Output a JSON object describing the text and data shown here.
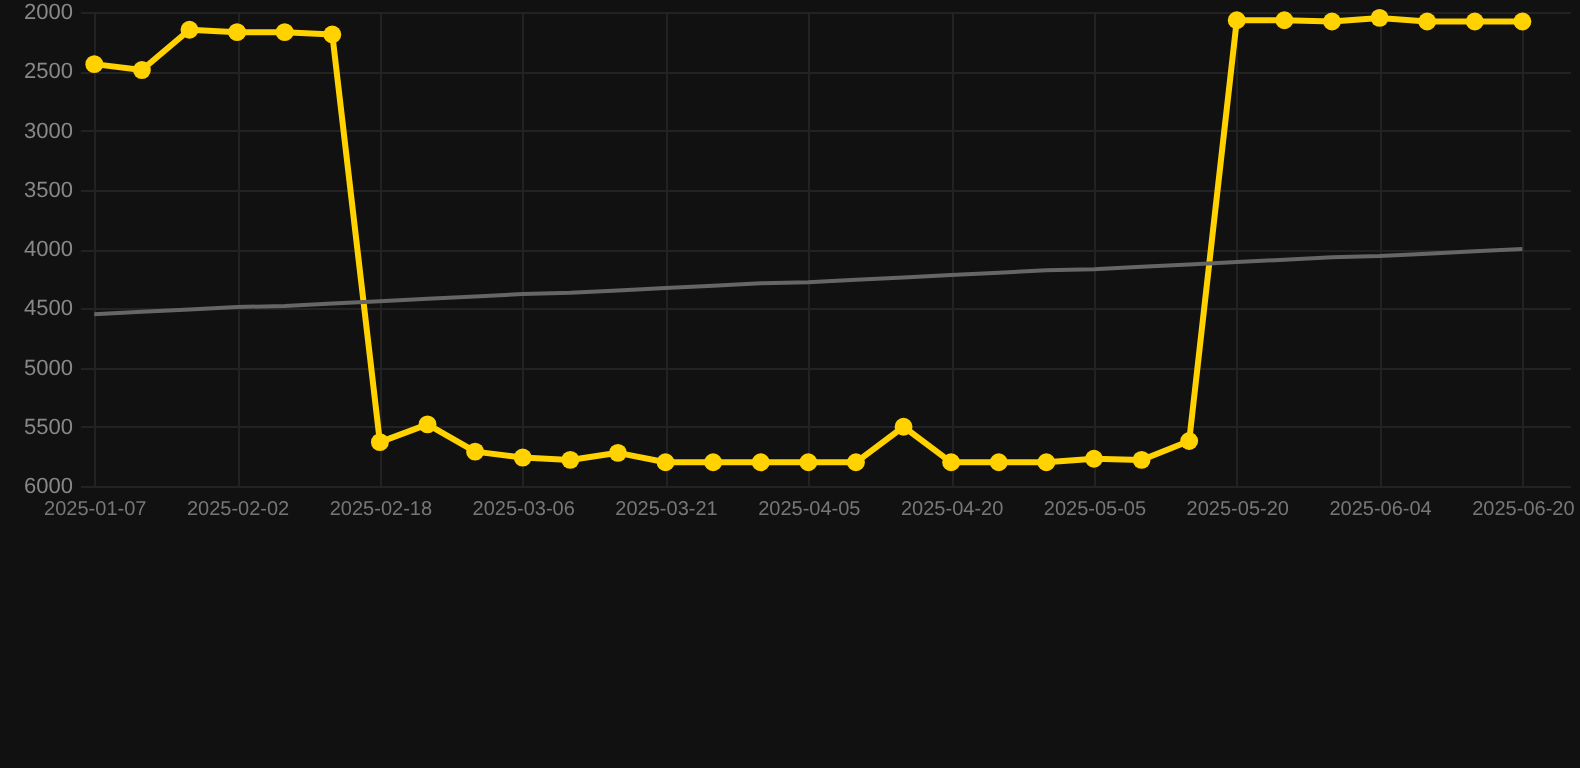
{
  "chart_data": {
    "type": "line",
    "categories": [
      "2025-01-07",
      null,
      null,
      "2025-02-02",
      null,
      null,
      "2025-02-18",
      null,
      null,
      "2025-03-06",
      null,
      null,
      "2025-03-21",
      null,
      null,
      "2025-04-05",
      null,
      null,
      "2025-04-20",
      null,
      null,
      "2025-05-05",
      null,
      null,
      "2025-05-20",
      null,
      null,
      "2025-06-04",
      null,
      null,
      "2025-06-20"
    ],
    "series": [
      {
        "color": "#ffd200",
        "values": [
          2440,
          2490,
          2150,
          2170,
          2170,
          2190,
          5630,
          5480,
          5710,
          5760,
          5780,
          5720,
          5800,
          5800,
          5800,
          5800,
          5800,
          5500,
          5800,
          5800,
          5800,
          5770,
          5780,
          5620,
          2070,
          2070,
          2080,
          2050,
          2080,
          2080,
          2080
        ]
      },
      {
        "type": "line",
        "color": "#666666",
        "values": [
          4550,
          4530,
          4510,
          4490,
          4480,
          4460,
          4440,
          4420,
          4400,
          4380,
          4370,
          4350,
          4330,
          4310,
          4290,
          4280,
          4260,
          4240,
          4220,
          4200,
          4180,
          4170,
          4150,
          4130,
          4110,
          4090,
          4070,
          4060,
          4040,
          4020,
          4000
        ],
        "marker": "none"
      }
    ],
    "ylim": [
      6000,
      2000
    ],
    "yticks": [
      2000,
      2500,
      3000,
      3500,
      4000,
      4500,
      5000,
      5500,
      6000
    ],
    "grid": true,
    "marker": "circle",
    "line_style": "solid"
  }
}
